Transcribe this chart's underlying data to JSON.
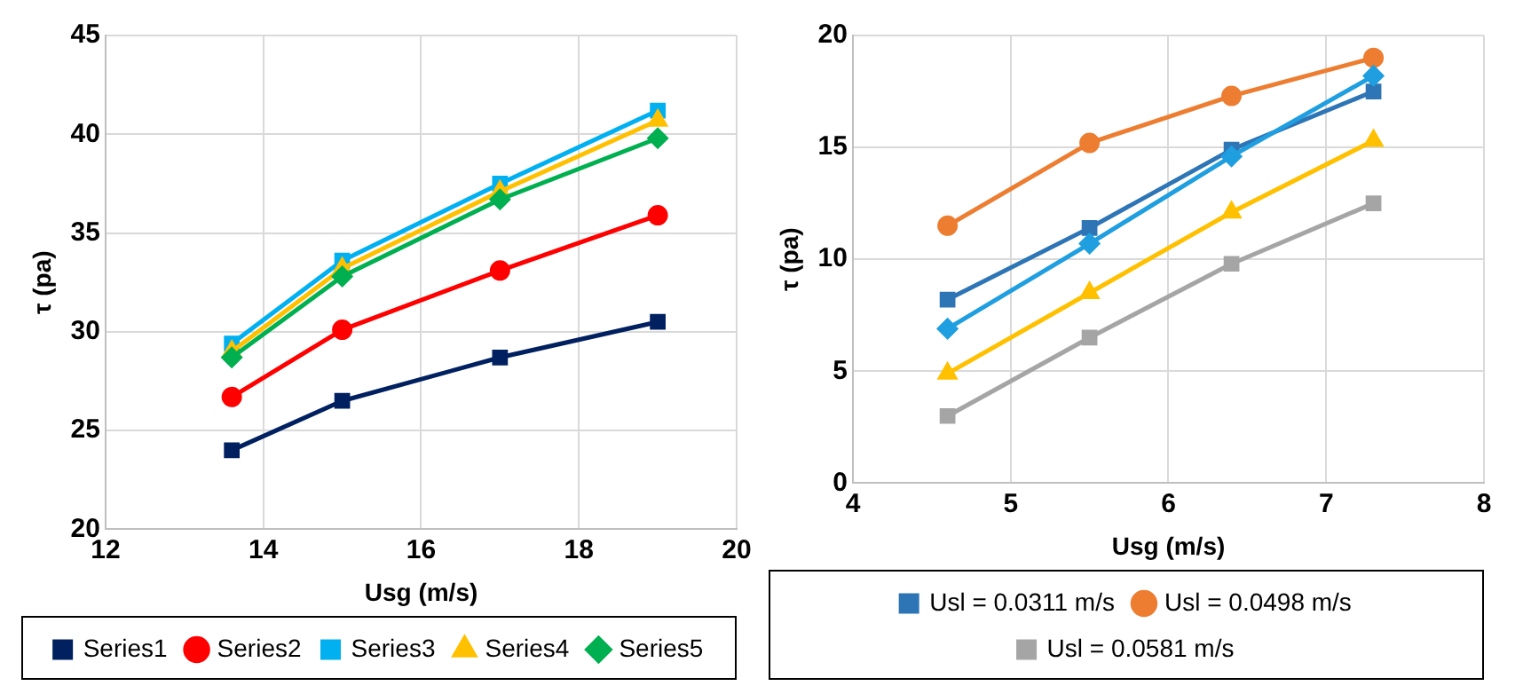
{
  "chart_data": [
    {
      "type": "line",
      "xlabel": "Usg (m/s)",
      "ylabel": "τ (pa)",
      "xlim": [
        12,
        20
      ],
      "xticks": [
        12,
        14,
        16,
        18,
        20
      ],
      "ylim": [
        20,
        45
      ],
      "yticks": [
        20,
        25,
        30,
        35,
        40,
        45
      ],
      "grid": true,
      "legend": "bottom",
      "x": [
        13.6,
        15,
        17,
        19
      ],
      "series": [
        {
          "name": "Series1",
          "color": "#002060",
          "marker": "square",
          "values": [
            24.0,
            26.5,
            28.7,
            30.5
          ]
        },
        {
          "name": "Series2",
          "color": "#ff0000",
          "marker": "circle",
          "values": [
            26.7,
            30.1,
            33.1,
            35.9
          ]
        },
        {
          "name": "Series3",
          "color": "#00b0f0",
          "marker": "square",
          "values": [
            29.4,
            33.6,
            37.5,
            41.2
          ]
        },
        {
          "name": "Series4",
          "color": "#ffc000",
          "marker": "triangle",
          "values": [
            29.0,
            33.2,
            37.1,
            40.7
          ]
        },
        {
          "name": "Series5",
          "color": "#00b050",
          "marker": "diamond",
          "values": [
            28.7,
            32.8,
            36.7,
            39.8
          ]
        }
      ]
    },
    {
      "type": "line",
      "xlabel": "Usg (m/s)",
      "ylabel": "τ (pa)",
      "xlim": [
        4,
        8
      ],
      "xticks": [
        4,
        5,
        6,
        7,
        8
      ],
      "ylim": [
        0,
        20
      ],
      "yticks": [
        0,
        5,
        10,
        15,
        20
      ],
      "grid": true,
      "legend": "bottom",
      "x": [
        4.6,
        5.5,
        6.4,
        7.3
      ],
      "series": [
        {
          "name": "Usl = 0.0311 m/s",
          "color": "#2e75b6",
          "marker": "square",
          "values": [
            8.2,
            11.4,
            14.9,
            17.5
          ]
        },
        {
          "name": "Usl = 0.0498 m/s",
          "color": "#ed7d31",
          "marker": "circle",
          "values": [
            11.5,
            15.2,
            17.3,
            19.0
          ]
        },
        {
          "name": "Usl = 0.0581 m/s",
          "color": "#a5a5a5",
          "marker": "square",
          "values": [
            3.0,
            6.5,
            9.8,
            12.5
          ]
        },
        {
          "color": "#ffc000",
          "marker": "triangle",
          "values": [
            4.9,
            8.5,
            12.1,
            15.3
          ]
        },
        {
          "color": "#1f9ee0",
          "marker": "diamond",
          "values": [
            6.9,
            10.7,
            14.6,
            18.2
          ]
        }
      ]
    }
  ]
}
